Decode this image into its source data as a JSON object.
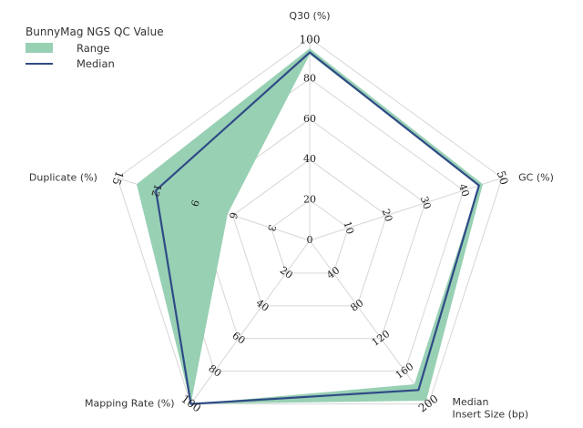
{
  "chart_data": {
    "type": "radar",
    "legend": {
      "title": "BunnyMag NGS QC Value",
      "placement": "top-left",
      "items": [
        {
          "label": "Range",
          "color": "#98d0b4"
        },
        {
          "label": "Median",
          "color": "#2f4b86"
        }
      ]
    },
    "axes": [
      {
        "label": "Q30 (%)",
        "max": 100,
        "ticks": [
          "20",
          "40",
          "60",
          "80",
          "100"
        ]
      },
      {
        "label": "GC (%)",
        "max": 50,
        "ticks": [
          "10",
          "20",
          "30",
          "40",
          "50"
        ]
      },
      {
        "label": "Median Insert Size (bp)",
        "label_lines": [
          "Median",
          "Insert Size (bp)"
        ],
        "max": 200,
        "ticks": [
          "40",
          "80",
          "120",
          "160",
          "200"
        ]
      },
      {
        "label": "Mapping Rate (%)",
        "max": 100,
        "ticks": [
          "20",
          "40",
          "60",
          "80",
          "100"
        ]
      },
      {
        "label": "Duplicate (%)",
        "max": 15,
        "ticks": [
          "3",
          "6",
          "9",
          "12",
          "15"
        ]
      }
    ],
    "center_label": "0",
    "series": [
      {
        "name": "Range",
        "kind": "range",
        "color": "#98d0b4",
        "min": [
          92,
          44,
          176,
          100,
          6.4
        ],
        "max": [
          95,
          45,
          196,
          100,
          13.5
        ]
      },
      {
        "name": "Median",
        "kind": "line",
        "color": "#2f4b86",
        "values": [
          93,
          44,
          183,
          100,
          12.0
        ]
      }
    ]
  }
}
